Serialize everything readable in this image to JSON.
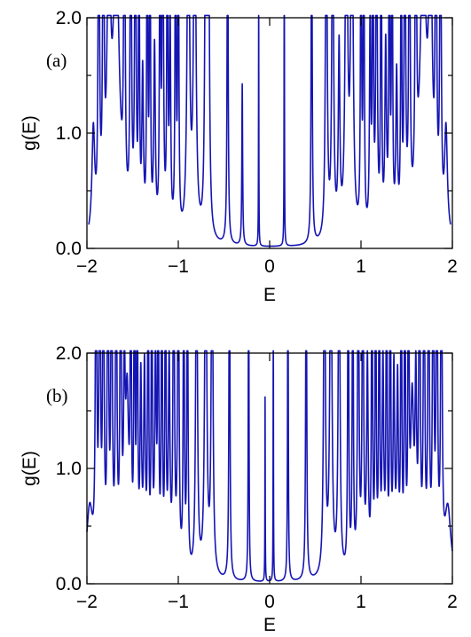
{
  "chart_data": [
    {
      "type": "line",
      "panel_label": "(a)",
      "xlabel": "E",
      "ylabel": "g(E)",
      "xlim": [
        -2,
        2
      ],
      "ylim": [
        0,
        2
      ],
      "xticks": [
        -2,
        -1,
        0,
        1,
        2
      ],
      "xtick_labels": [
        "−2",
        "−1",
        "0",
        "1",
        "2"
      ],
      "yticks": [
        0,
        1,
        2
      ],
      "ytick_labels": [
        "0.0",
        "1.0",
        "2.0"
      ],
      "yminor": [
        0.5,
        1.5
      ],
      "line_color": "#1515b4",
      "background": 0.003,
      "peaks": [
        [
          -1.93,
          0.9,
          0.018
        ],
        [
          -1.87,
          3.5,
          0.008
        ],
        [
          -1.82,
          3.5,
          0.008
        ],
        [
          -1.76,
          2.6,
          0.02
        ],
        [
          -1.68,
          2.5,
          0.04
        ],
        [
          -1.59,
          3.5,
          0.008
        ],
        [
          -1.52,
          3.5,
          0.008
        ],
        [
          -1.47,
          3.5,
          0.008
        ],
        [
          -1.43,
          3.0,
          0.006
        ],
        [
          -1.39,
          1.35,
          0.01
        ],
        [
          -1.34,
          3.5,
          0.006
        ],
        [
          -1.31,
          3.5,
          0.006
        ],
        [
          -1.26,
          1.6,
          0.01
        ],
        [
          -1.2,
          3.5,
          0.006
        ],
        [
          -1.17,
          3.5,
          0.008
        ],
        [
          -1.12,
          3.5,
          0.006
        ],
        [
          -1.09,
          1.9,
          0.008
        ],
        [
          -1.03,
          3.5,
          0.006
        ],
        [
          -1.0,
          3.5,
          0.006
        ],
        [
          -0.89,
          3.5,
          0.014
        ],
        [
          -0.82,
          3.5,
          0.014
        ],
        [
          -0.7,
          3.5,
          0.01
        ],
        [
          -0.67,
          3.5,
          0.01
        ],
        [
          -0.46,
          3.5,
          0.006
        ],
        [
          -0.3,
          1.4,
          0.005
        ],
        [
          -0.12,
          2.2,
          0.002
        ],
        [
          0.16,
          3.5,
          0.002
        ],
        [
          0.46,
          3.5,
          0.006
        ],
        [
          0.62,
          3.5,
          0.01
        ],
        [
          0.69,
          3.5,
          0.01
        ],
        [
          0.76,
          1.6,
          0.01
        ],
        [
          0.84,
          3.5,
          0.014
        ],
        [
          0.9,
          3.5,
          0.014
        ],
        [
          1.0,
          3.5,
          0.006
        ],
        [
          1.03,
          3.5,
          0.006
        ],
        [
          1.1,
          1.9,
          0.008
        ],
        [
          1.13,
          3.5,
          0.006
        ],
        [
          1.17,
          3.5,
          0.008
        ],
        [
          1.22,
          3.5,
          0.006
        ],
        [
          1.27,
          1.6,
          0.01
        ],
        [
          1.31,
          3.5,
          0.006
        ],
        [
          1.34,
          3.5,
          0.006
        ],
        [
          1.39,
          1.35,
          0.01
        ],
        [
          1.44,
          3.0,
          0.006
        ],
        [
          1.48,
          3.5,
          0.008
        ],
        [
          1.53,
          3.5,
          0.008
        ],
        [
          1.6,
          3.5,
          0.008
        ],
        [
          1.68,
          2.5,
          0.04
        ],
        [
          1.76,
          2.6,
          0.02
        ],
        [
          1.82,
          3.5,
          0.008
        ],
        [
          1.87,
          3.5,
          0.008
        ],
        [
          1.93,
          0.9,
          0.018
        ]
      ]
    },
    {
      "type": "line",
      "panel_label": "(b)",
      "xlabel": "E",
      "ylabel": "g(E)",
      "xlim": [
        -2,
        2
      ],
      "ylim": [
        0,
        2
      ],
      "xticks": [
        -2,
        -1,
        0,
        1,
        2
      ],
      "xtick_labels": [
        "−2",
        "−1",
        "0",
        "1",
        "2"
      ],
      "yticks": [
        0,
        1,
        2
      ],
      "ytick_labels": [
        "0.0",
        "1.0",
        "2.0"
      ],
      "yminor": [
        0.5,
        1.5
      ],
      "line_color": "#1515b4",
      "background": 0.004,
      "peaks": [
        [
          -1.97,
          0.6,
          0.04
        ],
        [
          -1.9,
          3.5,
          0.008
        ],
        [
          -1.86,
          3.5,
          0.008
        ],
        [
          -1.82,
          3.5,
          0.008
        ],
        [
          -1.77,
          3.5,
          0.008
        ],
        [
          -1.73,
          3.5,
          0.008
        ],
        [
          -1.68,
          3.5,
          0.008
        ],
        [
          -1.63,
          3.5,
          0.008
        ],
        [
          -1.59,
          1.5,
          0.01
        ],
        [
          -1.56,
          1.45,
          0.02
        ],
        [
          -1.52,
          3.5,
          0.006
        ],
        [
          -1.48,
          3.5,
          0.006
        ],
        [
          -1.45,
          3.5,
          0.006
        ],
        [
          -1.41,
          1.6,
          0.01
        ],
        [
          -1.37,
          1.7,
          0.01
        ],
        [
          -1.33,
          3.5,
          0.006
        ],
        [
          -1.29,
          3.5,
          0.006
        ],
        [
          -1.25,
          1.8,
          0.01
        ],
        [
          -1.22,
          3.5,
          0.006
        ],
        [
          -1.18,
          3.5,
          0.006
        ],
        [
          -1.14,
          3.5,
          0.006
        ],
        [
          -1.1,
          1.8,
          0.01
        ],
        [
          -1.05,
          3.5,
          0.008
        ],
        [
          -1.0,
          3.5,
          0.008
        ],
        [
          -0.94,
          3.5,
          0.006
        ],
        [
          -0.9,
          3.5,
          0.006
        ],
        [
          -0.8,
          3.5,
          0.01
        ],
        [
          -0.7,
          3.5,
          0.012
        ],
        [
          -0.63,
          3.5,
          0.01
        ],
        [
          -0.44,
          3.5,
          0.006
        ],
        [
          -0.23,
          3.5,
          0.004
        ],
        [
          -0.05,
          1.6,
          0.002
        ],
        [
          0.04,
          2.6,
          0.002
        ],
        [
          0.2,
          3.5,
          0.004
        ],
        [
          0.4,
          3.5,
          0.006
        ],
        [
          0.6,
          3.5,
          0.01
        ],
        [
          0.67,
          3.5,
          0.012
        ],
        [
          0.76,
          3.5,
          0.01
        ],
        [
          0.86,
          3.5,
          0.006
        ],
        [
          0.91,
          3.5,
          0.006
        ],
        [
          0.97,
          3.5,
          0.008
        ],
        [
          1.02,
          3.5,
          0.008
        ],
        [
          1.07,
          1.8,
          0.01
        ],
        [
          1.12,
          3.5,
          0.006
        ],
        [
          1.16,
          3.5,
          0.006
        ],
        [
          1.2,
          3.5,
          0.006
        ],
        [
          1.24,
          1.8,
          0.01
        ],
        [
          1.28,
          3.5,
          0.006
        ],
        [
          1.32,
          3.5,
          0.006
        ],
        [
          1.36,
          1.7,
          0.01
        ],
        [
          1.4,
          1.6,
          0.01
        ],
        [
          1.44,
          3.5,
          0.006
        ],
        [
          1.48,
          3.5,
          0.006
        ],
        [
          1.52,
          3.5,
          0.006
        ],
        [
          1.56,
          1.45,
          0.02
        ],
        [
          1.6,
          1.5,
          0.01
        ],
        [
          1.64,
          3.5,
          0.008
        ],
        [
          1.69,
          3.5,
          0.008
        ],
        [
          1.74,
          3.5,
          0.008
        ],
        [
          1.79,
          3.5,
          0.008
        ],
        [
          1.83,
          3.5,
          0.008
        ],
        [
          1.88,
          3.5,
          0.008
        ],
        [
          1.95,
          0.6,
          0.04
        ]
      ]
    }
  ]
}
